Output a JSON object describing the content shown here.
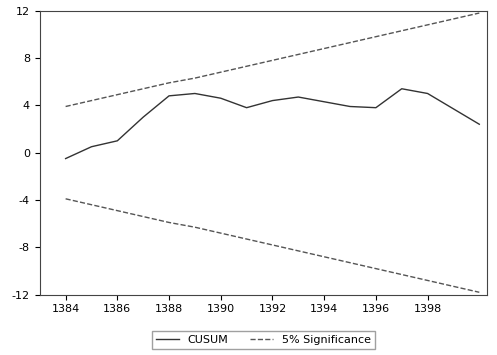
{
  "chart_data": {
    "type": "line",
    "x": [
      1384,
      1385,
      1386,
      1387,
      1388,
      1389,
      1390,
      1391,
      1392,
      1393,
      1394,
      1395,
      1396,
      1397,
      1398,
      1399,
      1400
    ],
    "series": [
      {
        "name": "CUSUM",
        "color": "#333333",
        "line_style": "solid",
        "values": [
          -0.5,
          0.5,
          1.0,
          3.0,
          4.8,
          5.0,
          4.6,
          3.8,
          4.4,
          4.7,
          4.3,
          3.9,
          3.8,
          5.4,
          5.0,
          3.7,
          2.4
        ]
      },
      {
        "name": "5% Significance",
        "color": "#555555",
        "line_style": "dashed",
        "values": [
          3.9,
          4.4,
          4.9,
          5.4,
          5.9,
          6.3,
          6.8,
          7.3,
          7.8,
          8.3,
          8.8,
          9.3,
          9.8,
          10.3,
          10.8,
          11.3,
          11.8
        ],
        "lower": [
          -3.9,
          -4.4,
          -4.9,
          -5.4,
          -5.9,
          -6.3,
          -6.8,
          -7.3,
          -7.8,
          -8.3,
          -8.8,
          -9.3,
          -9.8,
          -10.3,
          -10.8,
          -11.3,
          -11.8
        ]
      }
    ],
    "xlim": [
      1383,
      1400.3
    ],
    "xticks": [
      1384,
      1386,
      1388,
      1390,
      1392,
      1394,
      1396,
      1398
    ],
    "ylim": [
      -12,
      12
    ],
    "yticks": [
      -12,
      -8,
      -4,
      0,
      4,
      8,
      12
    ],
    "legend": "bottom"
  }
}
